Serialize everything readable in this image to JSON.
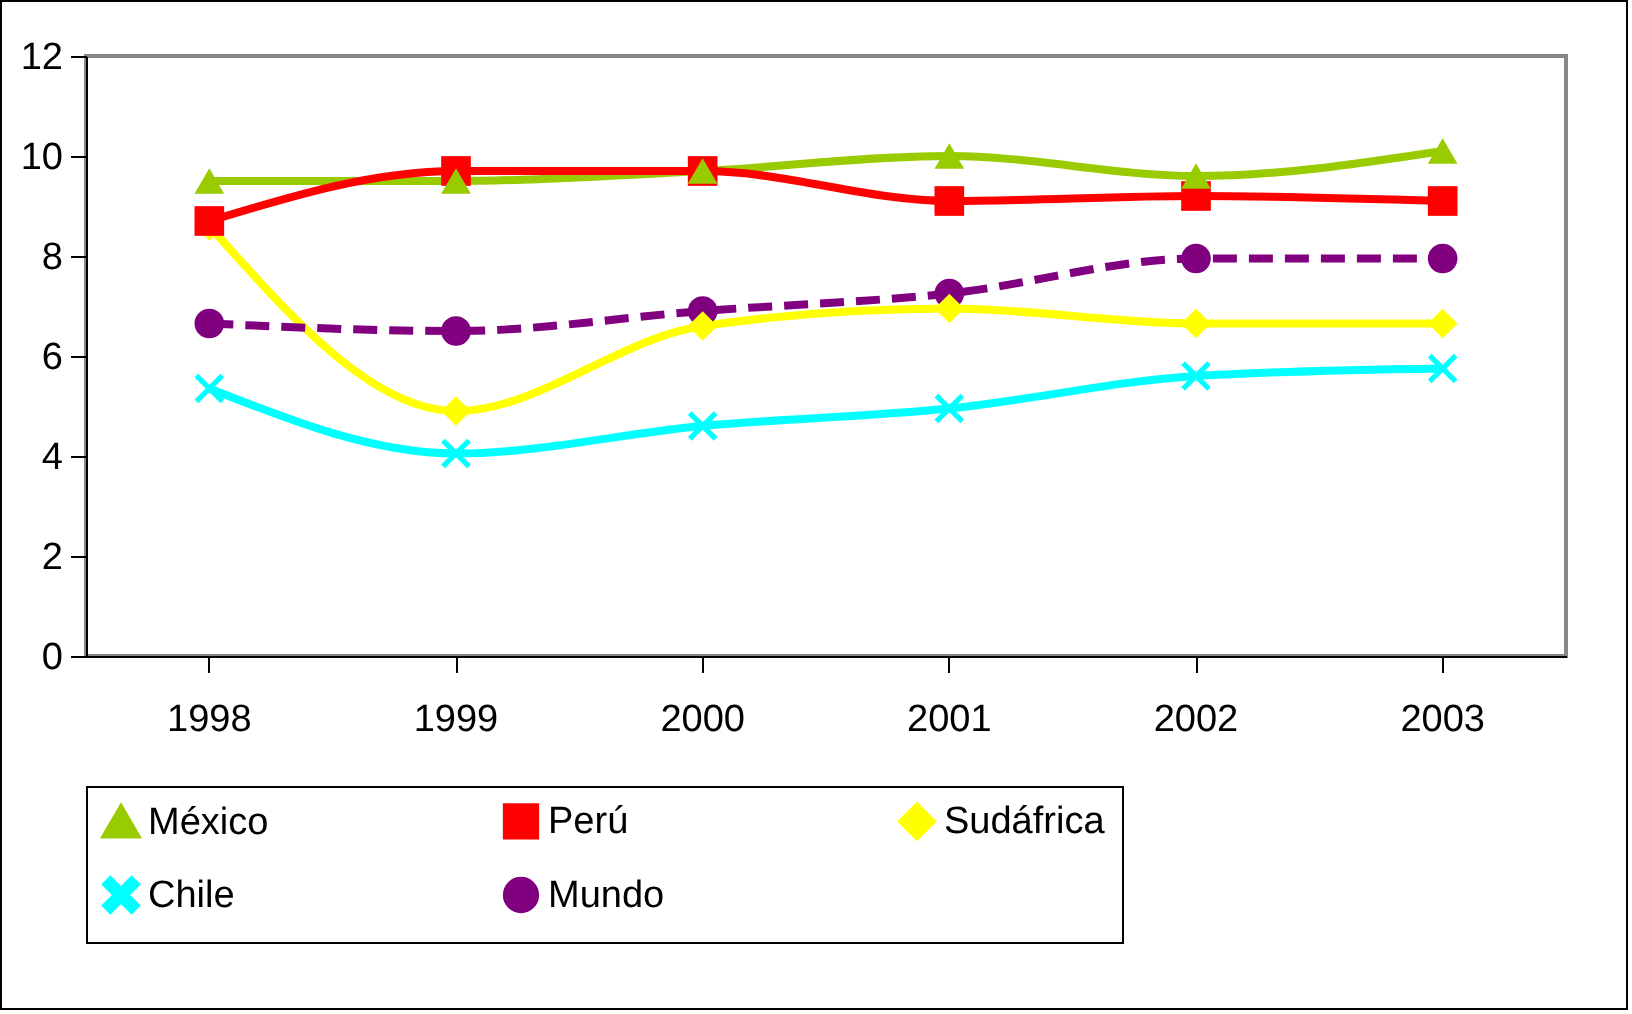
{
  "chart_data": {
    "type": "line",
    "categories": [
      "1998",
      "1999",
      "2000",
      "2001",
      "2002",
      "2003"
    ],
    "ylim": [
      0,
      12
    ],
    "yticks": [
      0,
      2,
      4,
      6,
      8,
      10,
      12
    ],
    "grid": false,
    "legend": "bottom",
    "series": [
      {
        "name": "México",
        "color": "#99cc00",
        "marker": "triangle",
        "line_style": "solid",
        "values": [
          9.5,
          9.5,
          9.7,
          10.0,
          9.6,
          10.1
        ]
      },
      {
        "name": "Perú",
        "color": "#ff0000",
        "marker": "square",
        "line_style": "solid",
        "values": [
          8.7,
          9.7,
          9.7,
          9.1,
          9.2,
          9.1
        ]
      },
      {
        "name": "Sudáfrica",
        "color": "#ffff00",
        "marker": "diamond",
        "line_style": "solid",
        "values": [
          8.6,
          4.9,
          6.6,
          6.95,
          6.65,
          6.65
        ]
      },
      {
        "name": "Chile",
        "color": "#00ffff",
        "marker": "cross",
        "line_style": "solid",
        "values": [
          5.35,
          4.05,
          4.6,
          4.95,
          5.6,
          5.75
        ]
      },
      {
        "name": "Mundo",
        "color": "#800080",
        "marker": "circle",
        "line_style": "dashed",
        "values": [
          6.65,
          6.5,
          6.9,
          7.25,
          7.95,
          7.95
        ]
      }
    ]
  }
}
